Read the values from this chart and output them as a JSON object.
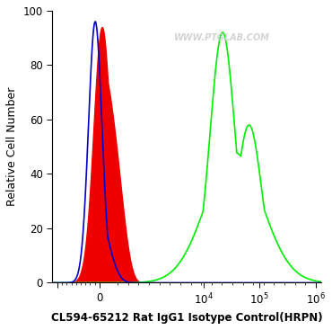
{
  "title": "CL594-65212 Rat IgG1 Isotype Control(HRPN)",
  "ylabel": "Relative Cell Number",
  "ylim": [
    0,
    100
  ],
  "background_color": "#ffffff",
  "plot_bg_color": "#ffffff",
  "watermark": "WWW.PTGLAB.COM",
  "blue_color": "#0000cc",
  "red_fill_color": "#ee0000",
  "green_color": "#00ee00",
  "title_fontsize": 8.5,
  "axis_fontsize": 9,
  "tick_fontsize": 8.5,
  "linewidth": 1.2
}
